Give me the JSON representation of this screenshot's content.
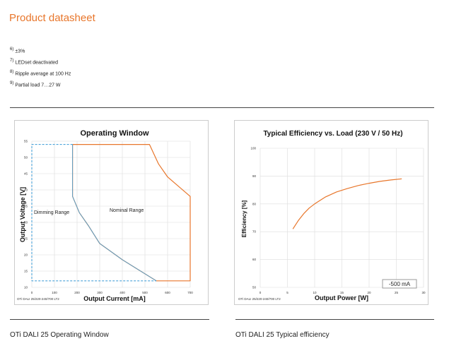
{
  "header": {
    "title": "Product datasheet"
  },
  "footnotes": [
    {
      "num": "6)",
      "text": "±3%"
    },
    {
      "num": "7)",
      "text": "LEDset deactivated"
    },
    {
      "num": "8)",
      "text": "Ripple average at 100 Hz"
    },
    {
      "num": "9)",
      "text": "Partial load 7…27 W"
    }
  ],
  "colors": {
    "orange": "#e8762b",
    "blue": "#4ba3d9",
    "grid": "#dcdcdc"
  },
  "chart_data": [
    {
      "type": "line",
      "title": "Operating Window",
      "xlabel": "Output Current [mA]",
      "ylabel": "Output Voltage [V]",
      "xlim": [
        0,
        700
      ],
      "ylim": [
        10,
        55
      ],
      "xticks": [
        0,
        100,
        200,
        300,
        400,
        500,
        600,
        700
      ],
      "yticks": [
        10,
        15,
        20,
        25,
        30,
        35,
        40,
        45,
        50,
        55
      ],
      "grid": true,
      "footer": "OTi DALI 25/220-240/700 LT2",
      "annotations": [
        "Nominal Range",
        "Dimming Range"
      ],
      "series": [
        {
          "style": "orange-solid",
          "points": [
            [
              180,
              54
            ],
            [
              520,
              54
            ],
            [
              560,
              48
            ],
            [
              600,
              44
            ],
            [
              700,
              38
            ],
            [
              700,
              12
            ],
            [
              550,
              12
            ],
            [
              400,
              18.5
            ],
            [
              300,
              23.5
            ],
            [
              250,
              29
            ],
            [
              210,
              33
            ],
            [
              180,
              38
            ],
            [
              180,
              54
            ]
          ]
        },
        {
          "style": "blue-dashed",
          "points": [
            [
              180,
              54
            ],
            [
              0,
              54
            ],
            [
              0,
              12
            ],
            [
              550,
              12
            ]
          ]
        },
        {
          "style": "blue-solid",
          "points": [
            [
              180,
              54
            ],
            [
              180,
              38
            ],
            [
              210,
              33
            ],
            [
              250,
              29
            ],
            [
              300,
              23.5
            ],
            [
              400,
              18.5
            ],
            [
              550,
              12
            ]
          ]
        }
      ]
    },
    {
      "type": "line",
      "title": "Typical Efficiency vs. Load (230 V / 50 Hz)",
      "xlabel": "Output Power [W]",
      "ylabel": "Efficiency [%]",
      "xlim": [
        0,
        30
      ],
      "ylim": [
        50,
        100
      ],
      "xticks": [
        0,
        5,
        10,
        15,
        20,
        25,
        30
      ],
      "yticks": [
        50,
        60,
        70,
        80,
        90,
        100
      ],
      "grid": true,
      "footer": "OTi DALI 25/220-240/700 LT2",
      "legend": "-500 mA",
      "series": [
        {
          "name": "-500 mA",
          "style": "orange-solid",
          "points": [
            [
              6,
              71
            ],
            [
              7,
              74
            ],
            [
              8,
              76.5
            ],
            [
              9,
              78.5
            ],
            [
              10,
              80
            ],
            [
              12,
              82.5
            ],
            [
              14,
              84.3
            ],
            [
              16,
              85.5
            ],
            [
              18,
              86.6
            ],
            [
              20,
              87.4
            ],
            [
              22,
              88.1
            ],
            [
              24,
              88.6
            ],
            [
              26,
              89
            ]
          ]
        }
      ]
    }
  ],
  "captions": [
    "OTi DALI 25 Operating Window",
    "OTi DALI 25 Typical efficiency"
  ]
}
